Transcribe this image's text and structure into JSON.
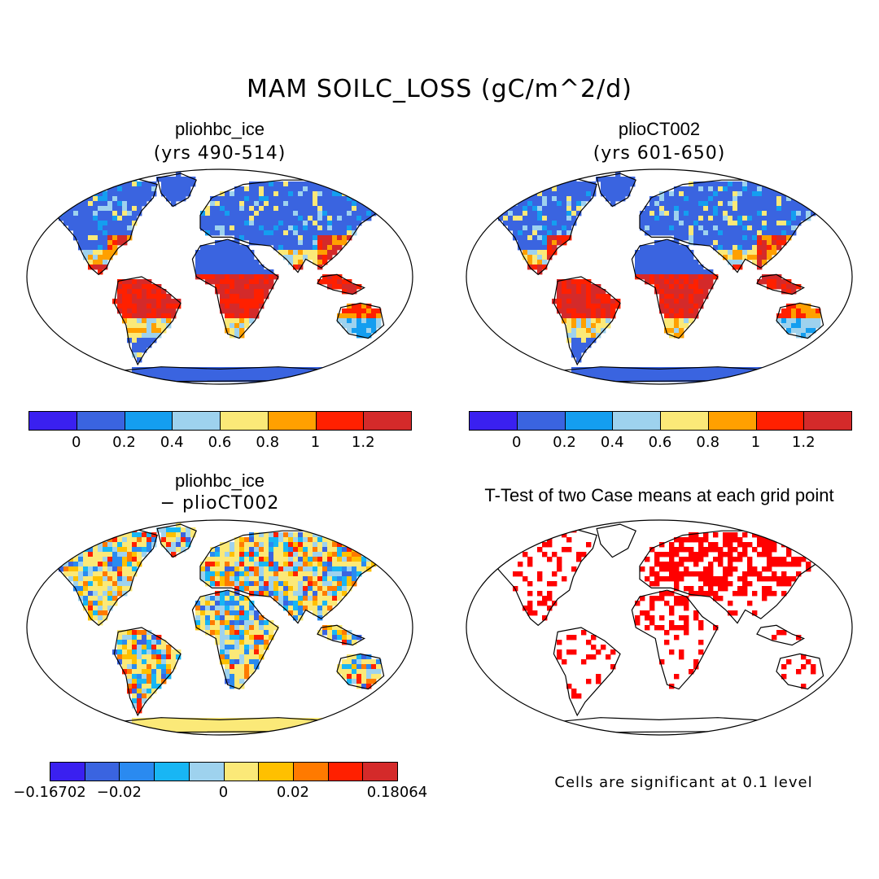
{
  "figure": {
    "title": "MAM SOILC_LOSS (gC/m^2/d)"
  },
  "panels": [
    {
      "name": "pliohbc_ice",
      "subtitle": "(yrs 490-514)",
      "colorbar": {
        "colors": [
          "#3a20f0",
          "#3a64e0",
          "#149ef0",
          "#9ed2ee",
          "#fbe978",
          "#ffa000",
          "#ff2000",
          "#d42a2a"
        ],
        "labels": [
          "0",
          "0.2",
          "0.4",
          "0.6",
          "0.8",
          "1",
          "1.2"
        ]
      }
    },
    {
      "name": "plioCT002",
      "subtitle": "(yrs 601-650)",
      "colorbar": {
        "colors": [
          "#3a20f0",
          "#3a64e0",
          "#149ef0",
          "#9ed2ee",
          "#fbe978",
          "#ffa000",
          "#ff2000",
          "#d42a2a"
        ],
        "labels": [
          "0",
          "0.2",
          "0.4",
          "0.6",
          "0.8",
          "1",
          "1.2"
        ]
      }
    },
    {
      "name": "pliohbc_ice",
      "subtitle": "− plioCT002",
      "colorbar": {
        "colors": [
          "#3a20f0",
          "#3a64e0",
          "#2a8af0",
          "#18b6f4",
          "#9ed2ee",
          "#fbe978",
          "#ffc000",
          "#ff7a00",
          "#ff2000",
          "#d42a2a"
        ],
        "labels": [
          "−0.16702",
          "−0.02",
          "0",
          "0.02",
          "0.18064"
        ]
      }
    },
    {
      "name": "T-Test of two Case means at each grid point",
      "note": "Cells are significant at 0.1 level",
      "significance_color": "#ff0000"
    }
  ]
}
